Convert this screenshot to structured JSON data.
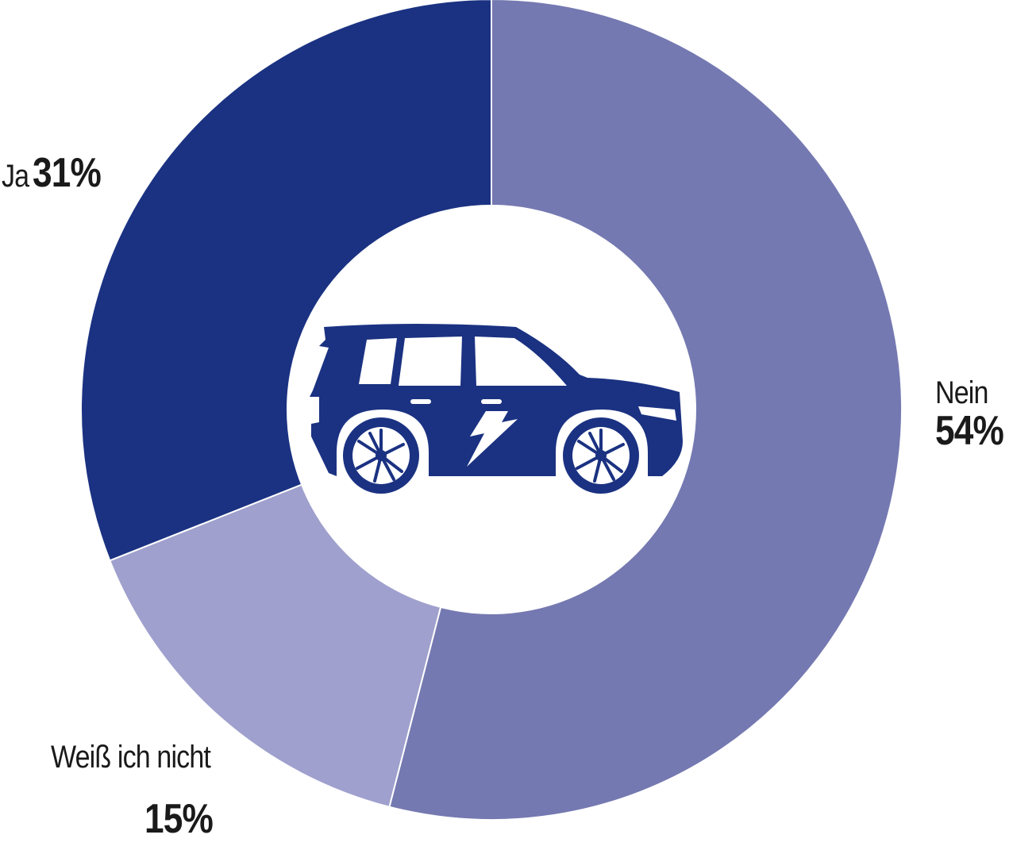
{
  "chart_data": {
    "type": "pie",
    "donut": true,
    "slices": [
      {
        "label": "Nein",
        "value": 54,
        "value_label": "54%",
        "color": "#7579b1"
      },
      {
        "label": "Weiß ich nicht",
        "value": 15,
        "value_label": "15%",
        "color": "#9fa0cd"
      },
      {
        "label": "Ja",
        "value": 31,
        "value_label": "31%",
        "color": "#1b3282"
      }
    ],
    "start": "12 o'clock",
    "direction": "clockwise",
    "center_icon": "electric-car-icon",
    "icon_color": "#1b3282",
    "background": "#ffffff"
  }
}
